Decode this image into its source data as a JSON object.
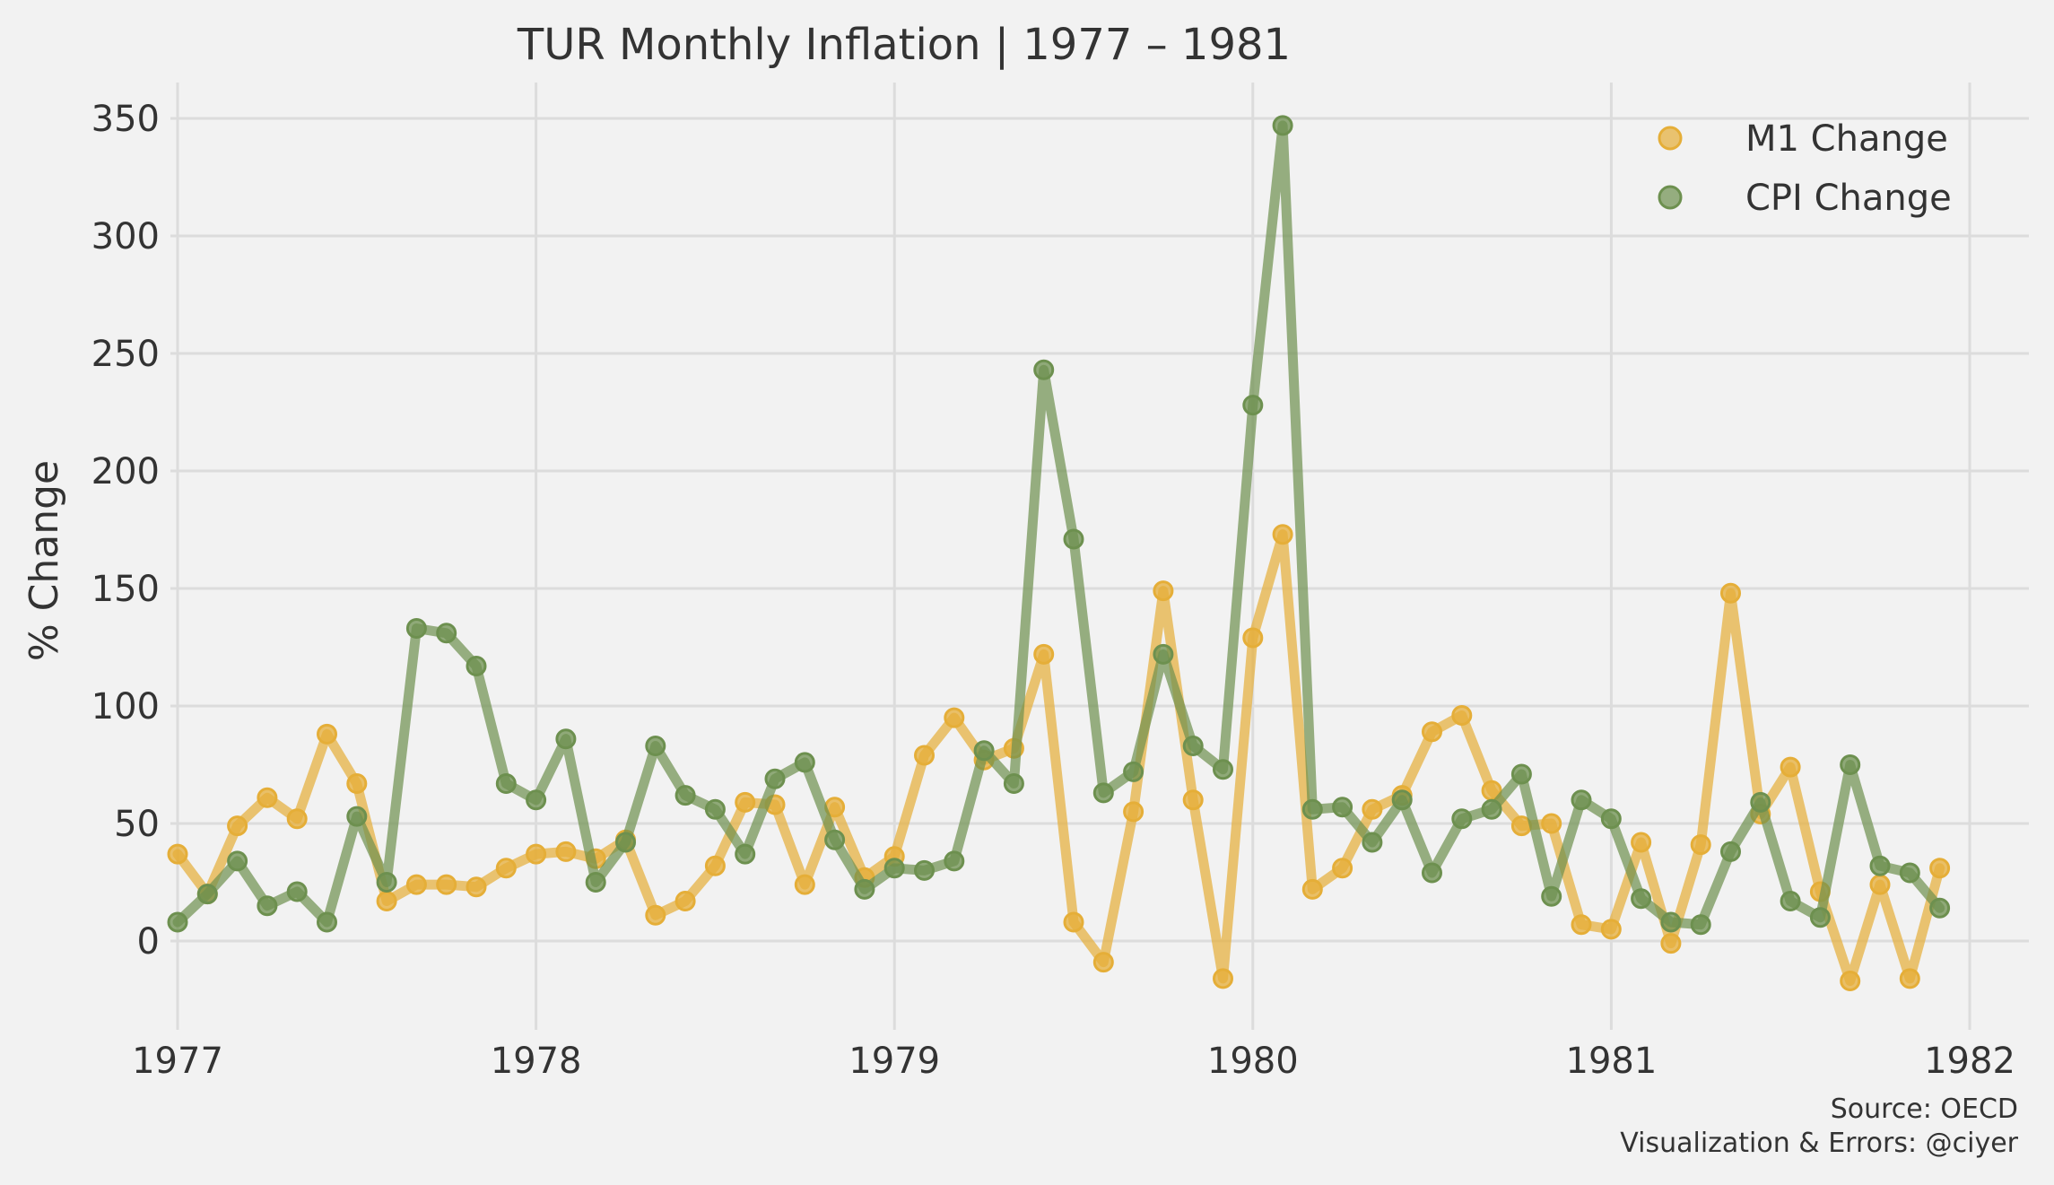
{
  "chart_data": {
    "type": "line",
    "title": "TUR Monthly Inflation | 1977 – 1981",
    "xlabel": "",
    "ylabel": "% Change",
    "xlim": [
      1976.8,
      1982.1
    ],
    "ylim": [
      -35,
      365
    ],
    "x_ticks": [
      1977,
      1978,
      1979,
      1980,
      1981,
      1982
    ],
    "x_tick_labels": [
      "1977",
      "1978",
      "1979",
      "1980",
      "1981",
      "1982"
    ],
    "y_ticks": [
      0,
      50,
      100,
      150,
      200,
      250,
      300,
      350
    ],
    "y_tick_labels": [
      "0",
      "50",
      "100",
      "150",
      "200",
      "250",
      "300",
      "350"
    ],
    "grid": true,
    "legend_position": "top-right",
    "x_start": 1977,
    "x_step": 0.08333,
    "series": [
      {
        "name": "M1 Change",
        "color": "#e5ae38",
        "values": [
          37,
          20,
          49,
          61,
          52,
          88,
          67,
          17,
          24,
          24,
          23,
          31,
          37,
          38,
          35,
          43,
          11,
          17,
          32,
          59,
          58,
          24,
          57,
          27,
          36,
          79,
          95,
          77,
          82,
          122,
          8,
          -9,
          55,
          149,
          60,
          -16,
          129,
          173,
          22,
          31,
          56,
          62,
          89,
          96,
          64,
          49,
          50,
          7,
          5,
          42,
          -1,
          41,
          148,
          54,
          74,
          21,
          -17,
          24,
          -16,
          31
        ]
      },
      {
        "name": "CPI Change",
        "color": "#6d904f",
        "values": [
          8,
          20,
          34,
          15,
          21,
          8,
          53,
          25,
          133,
          131,
          117,
          67,
          60,
          86,
          25,
          42,
          83,
          62,
          56,
          37,
          69,
          76,
          43,
          22,
          31,
          30,
          34,
          81,
          67,
          243,
          171,
          63,
          72,
          122,
          83,
          73,
          228,
          347,
          56,
          57,
          42,
          60,
          29,
          52,
          56,
          71,
          19,
          60,
          52,
          18,
          8,
          7,
          38,
          59,
          17,
          10,
          75,
          32,
          29,
          14
        ]
      }
    ],
    "annotations": [
      "Source: OECD",
      "Visualization & Errors: @ciyer"
    ]
  }
}
